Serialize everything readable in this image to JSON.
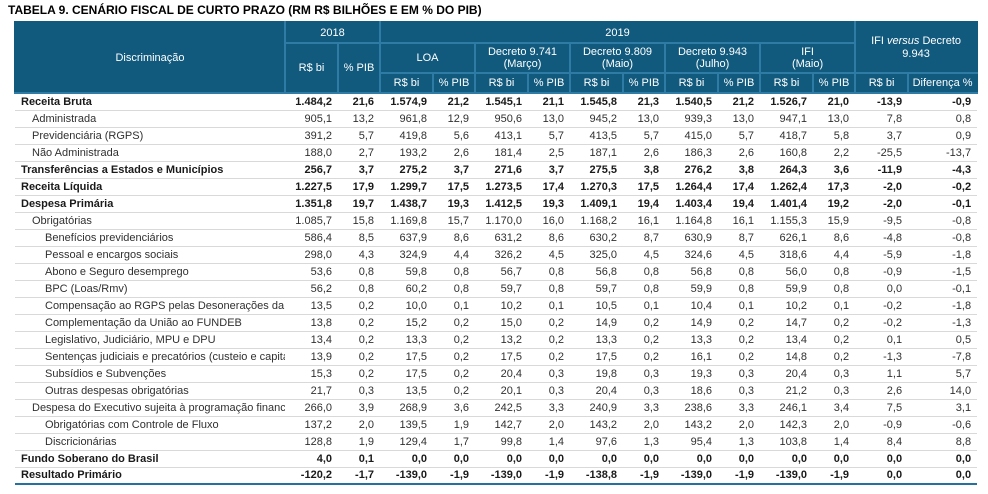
{
  "title": "TABELA 9. CENÁRIO FISCAL DE CURTO PRAZO (RM R$ BILHÕES E EM % DO PIB)",
  "colors": {
    "header_bg": "#115A7D",
    "header_border": "#2E7CA5",
    "section_rule": "#7F7F7F",
    "row_rule": "#D9D9D9",
    "bottom_rule": "#24719F"
  },
  "table": {
    "header": {
      "discriminacao": "Discriminação",
      "year_2018": "2018",
      "year_2019": "2019",
      "ifi_versus": {
        "pre": "IFI",
        "italic": "versus",
        "post": "Decreto 9.943"
      },
      "groups": [
        {
          "name": "LOA",
          "sub": ""
        },
        {
          "name": "Decreto 9.741",
          "sub": "(Março)"
        },
        {
          "name": "Decreto 9.809",
          "sub": "(Maio)"
        },
        {
          "name": "Decreto 9.943",
          "sub": "(Julho)"
        },
        {
          "name": "IFI",
          "sub": "(Maio)"
        }
      ],
      "unit_rs": "R$ bi",
      "unit_pib": "% PIB",
      "diferenca": "Diferença %"
    },
    "rows": [
      {
        "label": "Receita Bruta",
        "level": 0,
        "bold": true,
        "section": false,
        "values": [
          "1.484,2",
          "21,6",
          "1.574,9",
          "21,2",
          "1.545,1",
          "21,1",
          "1.545,8",
          "21,3",
          "1.540,5",
          "21,2",
          "1.526,7",
          "21,0",
          "-13,9",
          "-0,9"
        ]
      },
      {
        "label": "Administrada",
        "level": 1,
        "bold": false,
        "section": false,
        "values": [
          "905,1",
          "13,2",
          "961,8",
          "12,9",
          "950,6",
          "13,0",
          "945,2",
          "13,0",
          "939,3",
          "13,0",
          "947,1",
          "13,0",
          "7,8",
          "0,8"
        ]
      },
      {
        "label": "Previdenciária (RGPS)",
        "level": 1,
        "bold": false,
        "section": false,
        "values": [
          "391,2",
          "5,7",
          "419,8",
          "5,6",
          "413,1",
          "5,7",
          "413,5",
          "5,7",
          "415,0",
          "5,7",
          "418,7",
          "5,8",
          "3,7",
          "0,9"
        ]
      },
      {
        "label": "Não Administrada",
        "level": 1,
        "bold": false,
        "section": false,
        "values": [
          "188,0",
          "2,7",
          "193,2",
          "2,6",
          "181,4",
          "2,5",
          "187,1",
          "2,6",
          "186,3",
          "2,6",
          "160,8",
          "2,2",
          "-25,5",
          "-13,7"
        ]
      },
      {
        "label": "Transferências a Estados e Municípios",
        "level": 0,
        "bold": true,
        "section": true,
        "values": [
          "256,7",
          "3,7",
          "275,2",
          "3,7",
          "271,6",
          "3,7",
          "275,5",
          "3,8",
          "276,2",
          "3,8",
          "264,3",
          "3,6",
          "-11,9",
          "-4,3"
        ]
      },
      {
        "label": "Receita Líquida",
        "level": 0,
        "bold": true,
        "section": true,
        "values": [
          "1.227,5",
          "17,9",
          "1.299,7",
          "17,5",
          "1.273,5",
          "17,4",
          "1.270,3",
          "17,5",
          "1.264,4",
          "17,4",
          "1.262,4",
          "17,3",
          "-2,0",
          "-0,2"
        ]
      },
      {
        "label": "Despesa Primária",
        "level": 0,
        "bold": true,
        "section": true,
        "values": [
          "1.351,8",
          "19,7",
          "1.438,7",
          "19,3",
          "1.412,5",
          "19,3",
          "1.409,1",
          "19,4",
          "1.403,4",
          "19,4",
          "1.401,4",
          "19,2",
          "-2,0",
          "-0,1"
        ]
      },
      {
        "label": "Obrigatórias",
        "level": 1,
        "bold": false,
        "section": false,
        "values": [
          "1.085,7",
          "15,8",
          "1.169,8",
          "15,7",
          "1.170,0",
          "16,0",
          "1.168,2",
          "16,1",
          "1.164,8",
          "16,1",
          "1.155,3",
          "15,9",
          "-9,5",
          "-0,8"
        ]
      },
      {
        "label": "Benefícios previdenciários",
        "level": 2,
        "bold": false,
        "section": false,
        "values": [
          "586,4",
          "8,5",
          "637,9",
          "8,6",
          "631,2",
          "8,6",
          "630,2",
          "8,7",
          "630,9",
          "8,7",
          "626,1",
          "8,6",
          "-4,8",
          "-0,8"
        ]
      },
      {
        "label": "Pessoal e encargos sociais",
        "level": 2,
        "bold": false,
        "section": false,
        "values": [
          "298,0",
          "4,3",
          "324,9",
          "4,4",
          "326,2",
          "4,5",
          "325,0",
          "4,5",
          "324,6",
          "4,5",
          "318,6",
          "4,4",
          "-5,9",
          "-1,8"
        ]
      },
      {
        "label": "Abono e Seguro desemprego",
        "level": 2,
        "bold": false,
        "section": false,
        "values": [
          "53,6",
          "0,8",
          "59,8",
          "0,8",
          "56,7",
          "0,8",
          "56,8",
          "0,8",
          "56,8",
          "0,8",
          "56,0",
          "0,8",
          "-0,9",
          "-1,5"
        ]
      },
      {
        "label": "BPC (Loas/Rmv)",
        "level": 2,
        "bold": false,
        "section": false,
        "values": [
          "56,2",
          "0,8",
          "60,2",
          "0,8",
          "59,7",
          "0,8",
          "59,7",
          "0,8",
          "59,9",
          "0,8",
          "59,9",
          "0,8",
          "0,0",
          "-0,1"
        ]
      },
      {
        "label": "Compensação ao RGPS pelas Desonerações da Folha",
        "level": 2,
        "bold": false,
        "section": false,
        "values": [
          "13,5",
          "0,2",
          "10,0",
          "0,1",
          "10,2",
          "0,1",
          "10,5",
          "0,1",
          "10,4",
          "0,1",
          "10,2",
          "0,1",
          "-0,2",
          "-1,8"
        ]
      },
      {
        "label": "Complementação da União ao FUNDEB",
        "level": 2,
        "bold": false,
        "section": false,
        "values": [
          "13,8",
          "0,2",
          "15,2",
          "0,2",
          "15,0",
          "0,2",
          "14,9",
          "0,2",
          "14,9",
          "0,2",
          "14,7",
          "0,2",
          "-0,2",
          "-1,3"
        ]
      },
      {
        "label": "Legislativo, Judiciário, MPU e DPU",
        "level": 2,
        "bold": false,
        "section": false,
        "values": [
          "13,4",
          "0,2",
          "13,3",
          "0,2",
          "13,2",
          "0,2",
          "13,3",
          "0,2",
          "13,3",
          "0,2",
          "13,4",
          "0,2",
          "0,1",
          "0,5"
        ]
      },
      {
        "label": "Sentenças judiciais e precatórios (custeio e capital)",
        "level": 2,
        "bold": false,
        "section": false,
        "values": [
          "13,9",
          "0,2",
          "17,5",
          "0,2",
          "17,5",
          "0,2",
          "17,5",
          "0,2",
          "16,1",
          "0,2",
          "14,8",
          "0,2",
          "-1,3",
          "-7,8"
        ]
      },
      {
        "label": "Subsídios e Subvenções",
        "level": 2,
        "bold": false,
        "section": false,
        "values": [
          "15,3",
          "0,2",
          "17,5",
          "0,2",
          "20,4",
          "0,3",
          "19,8",
          "0,3",
          "19,3",
          "0,3",
          "20,4",
          "0,3",
          "1,1",
          "5,7"
        ]
      },
      {
        "label": "Outras despesas obrigatórias",
        "level": 2,
        "bold": false,
        "section": false,
        "values": [
          "21,7",
          "0,3",
          "13,5",
          "0,2",
          "20,1",
          "0,3",
          "20,4",
          "0,3",
          "18,6",
          "0,3",
          "21,2",
          "0,3",
          "2,6",
          "14,0"
        ]
      },
      {
        "label": "Despesa do Executivo sujeita à programação financeira",
        "level": 1,
        "bold": false,
        "section": false,
        "values": [
          "266,0",
          "3,9",
          "268,9",
          "3,6",
          "242,5",
          "3,3",
          "240,9",
          "3,3",
          "238,6",
          "3,3",
          "246,1",
          "3,4",
          "7,5",
          "3,1"
        ]
      },
      {
        "label": "Obrigatórias com Controle de Fluxo",
        "level": 2,
        "bold": false,
        "section": false,
        "values": [
          "137,2",
          "2,0",
          "139,5",
          "1,9",
          "142,7",
          "2,0",
          "143,2",
          "2,0",
          "143,2",
          "2,0",
          "142,3",
          "2,0",
          "-0,9",
          "-0,6"
        ]
      },
      {
        "label": "Discricionárias",
        "level": 2,
        "bold": false,
        "section": false,
        "values": [
          "128,8",
          "1,9",
          "129,4",
          "1,7",
          "99,8",
          "1,4",
          "97,6",
          "1,3",
          "95,4",
          "1,3",
          "103,8",
          "1,4",
          "8,4",
          "8,8"
        ]
      },
      {
        "label": "Fundo Soberano do Brasil",
        "level": 0,
        "bold": true,
        "section": true,
        "values": [
          "4,0",
          "0,1",
          "0,0",
          "0,0",
          "0,0",
          "0,0",
          "0,0",
          "0,0",
          "0,0",
          "0,0",
          "0,0",
          "0,0",
          "0,0",
          "0,0"
        ]
      },
      {
        "label": "Resultado Primário",
        "level": 0,
        "bold": true,
        "section": true,
        "values": [
          "-120,2",
          "-1,7",
          "-139,0",
          "-1,9",
          "-139,0",
          "-1,9",
          "-138,8",
          "-1,9",
          "-139,0",
          "-1,9",
          "-139,0",
          "-1,9",
          "0,0",
          "0,0"
        ]
      }
    ]
  }
}
